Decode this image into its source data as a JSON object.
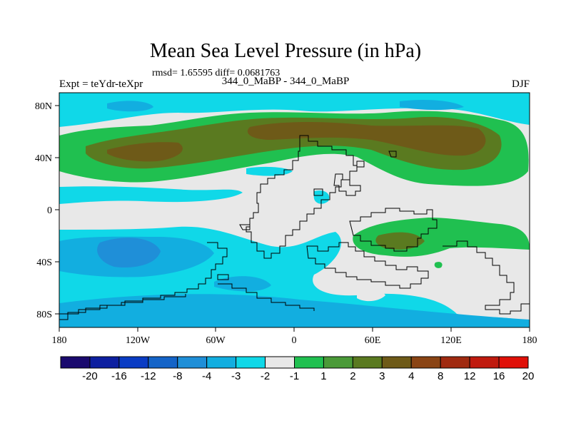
{
  "title": "Mean Sea Level Pressure (in hPa)",
  "subtitle": "rmsd= 1.65595 diff= 0.0681763",
  "left_label": "Expt = teYdr-teXpr",
  "center_label": "344_0_MaBP - 344_0_MaBP",
  "right_label": "DJF",
  "x_ticks": [
    "180",
    "120W",
    "60W",
    "0",
    "60E",
    "120E",
    "180"
  ],
  "y_ticks": [
    "80N",
    "40N",
    "0",
    "40S",
    "80S"
  ],
  "colorbar": {
    "colors": [
      "#1a0a6e",
      "#0d1fa0",
      "#0a3cc4",
      "#1464c8",
      "#1f8fd8",
      "#12aee0",
      "#10d8e8",
      "#e8e8e8",
      "#20c050",
      "#4a9a38",
      "#5a7a20",
      "#6e5a18",
      "#8a4414",
      "#a02a10",
      "#c01a0e",
      "#e01008"
    ],
    "labels": [
      "-20",
      "-16",
      "-12",
      "-8",
      "-4",
      "-3",
      "-2",
      "-1",
      "1",
      "2",
      "3",
      "4",
      "8",
      "12",
      "16",
      "20"
    ]
  },
  "chart_data": {
    "type": "heatmap",
    "title": "Mean Sea Level Pressure (in hPa)",
    "variable": "Mean Sea Level Pressure difference",
    "units": "hPa",
    "season": "DJF",
    "lon_range": [
      -180,
      180
    ],
    "lat_range": [
      -90,
      90
    ],
    "contour_levels": [
      -20,
      -16,
      -12,
      -8,
      -4,
      -3,
      -2,
      -1,
      1,
      2,
      3,
      4,
      8,
      12,
      16,
      20
    ],
    "rmsd": 1.65595,
    "diff": 0.0681763
  }
}
